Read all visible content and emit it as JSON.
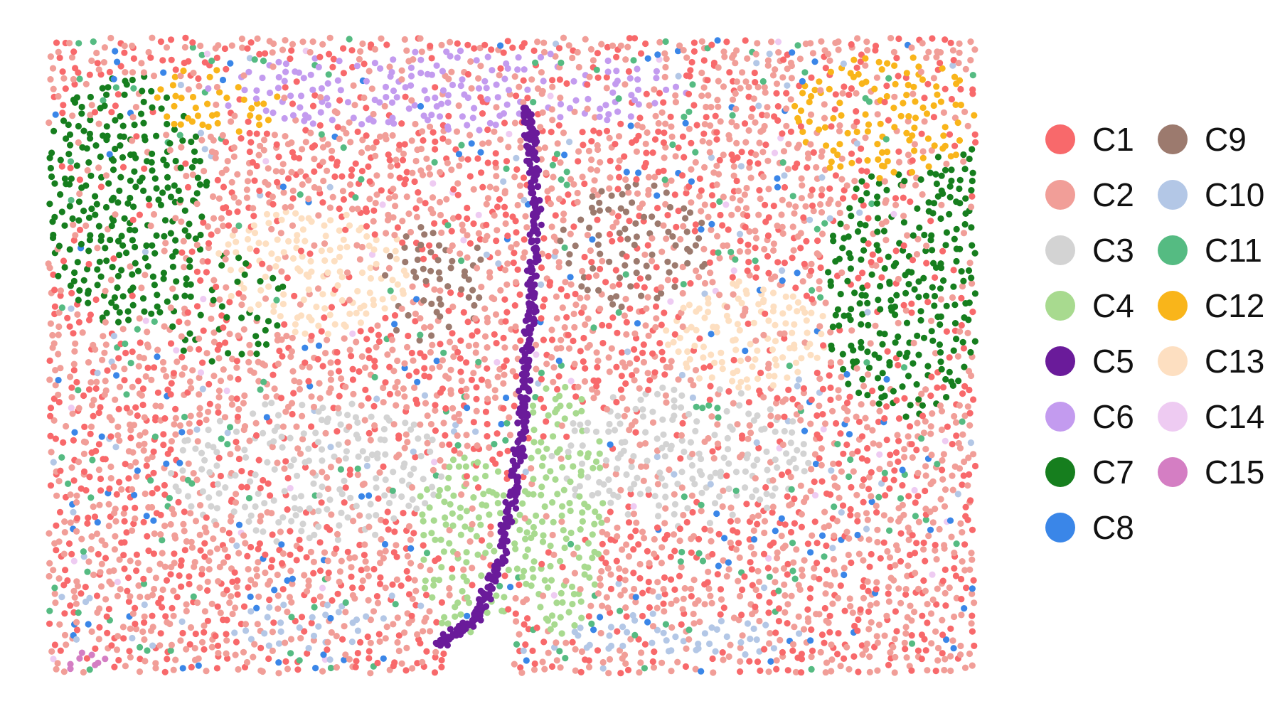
{
  "chart_data": {
    "type": "scatter",
    "title": "",
    "xlabel": "",
    "ylabel": "",
    "axes_visible": false,
    "grid": false,
    "legend_position": "right",
    "legend_columns": 2,
    "x_range": [
      0,
      100
    ],
    "y_range": [
      0,
      70
    ],
    "series": [
      {
        "name": "C1",
        "color": "#F8696B"
      },
      {
        "name": "C2",
        "color": "#F19E98"
      },
      {
        "name": "C3",
        "color": "#D3D3D3"
      },
      {
        "name": "C4",
        "color": "#A8DA8F"
      },
      {
        "name": "C5",
        "color": "#6A1B9A"
      },
      {
        "name": "C6",
        "color": "#C39BEF"
      },
      {
        "name": "C7",
        "color": "#167E1E"
      },
      {
        "name": "C8",
        "color": "#3A86E8"
      },
      {
        "name": "C9",
        "color": "#9C7A6E"
      },
      {
        "name": "C10",
        "color": "#B3C7E6"
      },
      {
        "name": "C11",
        "color": "#55BB82"
      },
      {
        "name": "C12",
        "color": "#F9B51A"
      },
      {
        "name": "C13",
        "color": "#FDDFC1"
      },
      {
        "name": "C14",
        "color": "#EECBF2"
      },
      {
        "name": "C15",
        "color": "#D47EC3"
      }
    ],
    "regions": [
      {
        "cluster": "C6",
        "shape": "ellipse",
        "cx": 43,
        "cy": 64,
        "rx": 26,
        "ry": 4.5,
        "density": 0.55
      },
      {
        "cluster": "C12",
        "shape": "ellipse",
        "cx": 18,
        "cy": 63,
        "rx": 7,
        "ry": 4,
        "density": 0.6
      },
      {
        "cluster": "C12",
        "shape": "ellipse",
        "cx": 90,
        "cy": 61,
        "rx": 10,
        "ry": 7,
        "density": 0.55
      },
      {
        "cluster": "C7",
        "shape": "ellipse",
        "cx": 8,
        "cy": 52,
        "rx": 9,
        "ry": 14,
        "density": 0.7
      },
      {
        "cluster": "C7",
        "shape": "ellipse",
        "cx": 18,
        "cy": 40,
        "rx": 8,
        "ry": 6,
        "density": 0.4
      },
      {
        "cluster": "C7",
        "shape": "ellipse",
        "cx": 92,
        "cy": 42,
        "rx": 9,
        "ry": 14,
        "density": 0.65
      },
      {
        "cluster": "C7",
        "shape": "ellipse",
        "cx": 97,
        "cy": 55,
        "rx": 3,
        "ry": 6,
        "density": 0.6
      },
      {
        "cluster": "C13",
        "shape": "ellipse",
        "cx": 28,
        "cy": 44,
        "rx": 11,
        "ry": 7,
        "density": 0.7
      },
      {
        "cluster": "C13",
        "shape": "ellipse",
        "cx": 75,
        "cy": 37,
        "rx": 9,
        "ry": 6,
        "density": 0.7
      },
      {
        "cluster": "C9",
        "shape": "ellipse",
        "cx": 41,
        "cy": 43,
        "rx": 6,
        "ry": 7,
        "density": 0.45
      },
      {
        "cluster": "C9",
        "shape": "ellipse",
        "cx": 63,
        "cy": 47,
        "rx": 8,
        "ry": 7,
        "density": 0.45
      },
      {
        "cluster": "C3",
        "shape": "ellipse",
        "cx": 28,
        "cy": 22,
        "rx": 15,
        "ry": 8,
        "density": 0.5
      },
      {
        "cluster": "C3",
        "shape": "ellipse",
        "cx": 68,
        "cy": 24,
        "rx": 14,
        "ry": 8,
        "density": 0.5
      },
      {
        "cluster": "C4",
        "shape": "ellipse",
        "cx": 45,
        "cy": 14,
        "rx": 6,
        "ry": 10,
        "density": 0.75
      },
      {
        "cluster": "C4",
        "shape": "ellipse",
        "cx": 55,
        "cy": 18,
        "rx": 5,
        "ry": 14,
        "density": 0.75
      },
      {
        "cluster": "C10",
        "shape": "ellipse",
        "cx": 28,
        "cy": 5,
        "rx": 9,
        "ry": 2.5,
        "density": 0.5
      },
      {
        "cluster": "C10",
        "shape": "ellipse",
        "cx": 68,
        "cy": 4,
        "rx": 13,
        "ry": 2.5,
        "density": 0.5
      },
      {
        "cluster": "C15",
        "shape": "ellipse",
        "cx": 4,
        "cy": 1.5,
        "rx": 3,
        "ry": 1.5,
        "density": 0.8
      },
      {
        "cluster": "C5",
        "shape": "path",
        "points": [
          [
            51.5,
            62
          ],
          [
            52,
            57
          ],
          [
            52.5,
            50
          ],
          [
            52,
            42
          ],
          [
            51.5,
            35
          ],
          [
            51,
            28
          ],
          [
            50,
            20
          ],
          [
            48.5,
            12
          ],
          [
            46,
            6
          ],
          [
            42,
            3
          ]
        ],
        "width": 1.4,
        "density": 1.0
      }
    ],
    "background_mix": [
      {
        "cluster": "C2",
        "weight": 0.5
      },
      {
        "cluster": "C1",
        "weight": 0.38
      },
      {
        "cluster": "C11",
        "weight": 0.05
      },
      {
        "cluster": "C8",
        "weight": 0.04
      },
      {
        "cluster": "C14",
        "weight": 0.01
      },
      {
        "cluster": "C10",
        "weight": 0.02
      }
    ]
  }
}
